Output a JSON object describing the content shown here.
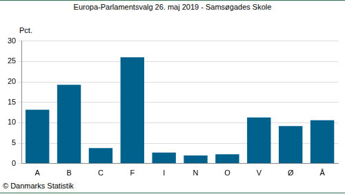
{
  "chart_data": {
    "type": "bar",
    "title": "Europa-Parlamentsvalg 26. maj 2019 - Samsøgades Skole",
    "y_label": "Pct.",
    "source": "© Danmarks Statistik",
    "categories": [
      "A",
      "B",
      "C",
      "F",
      "I",
      "N",
      "O",
      "V",
      "Ø",
      "Å"
    ],
    "values": [
      13.2,
      19.3,
      3.8,
      26.0,
      2.7,
      2.0,
      2.3,
      11.3,
      9.2,
      10.6
    ],
    "color": "#00628c",
    "ylim": [
      0,
      30
    ],
    "yticks": [
      0,
      5,
      10,
      15,
      20,
      25,
      30
    ],
    "grid": true
  }
}
